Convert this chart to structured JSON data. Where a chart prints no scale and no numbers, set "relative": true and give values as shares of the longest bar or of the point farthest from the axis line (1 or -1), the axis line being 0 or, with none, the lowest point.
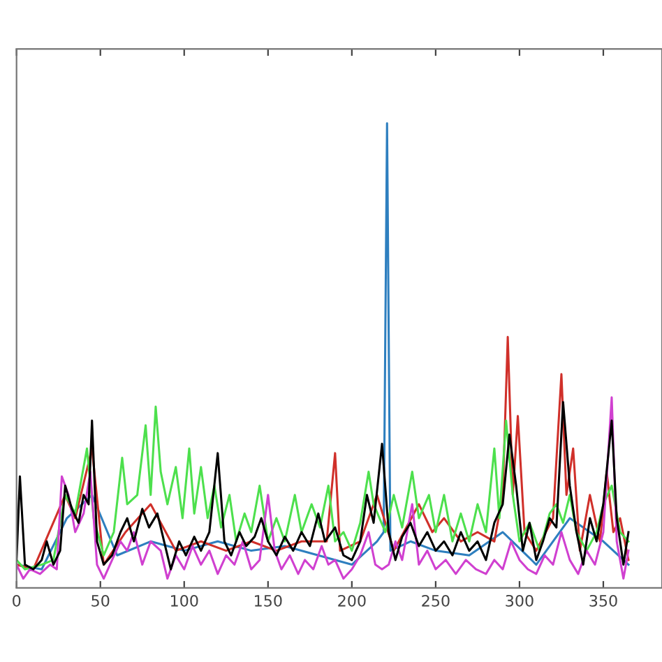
{
  "chart_data": {
    "type": "line",
    "relative": true,
    "xlim": [
      0,
      385
    ],
    "xticks": [
      0,
      50,
      100,
      150,
      200,
      250,
      300,
      350
    ],
    "grid": false,
    "legend": false,
    "marker": "none",
    "line_style": "solid",
    "series": [
      {
        "color": "#2e7fbf",
        "x": [
          0,
          15,
          30,
          45,
          60,
          80,
          100,
          120,
          140,
          160,
          180,
          200,
          215,
          219,
          221,
          223,
          235,
          250,
          270,
          290,
          310,
          330,
          350,
          365
        ],
        "values": [
          0.05,
          0.04,
          0.15,
          0.2,
          0.07,
          0.1,
          0.08,
          0.1,
          0.08,
          0.09,
          0.07,
          0.05,
          0.1,
          0.12,
          1.0,
          0.08,
          0.1,
          0.08,
          0.07,
          0.12,
          0.05,
          0.15,
          0.1,
          0.05
        ]
      },
      {
        "color": "#d0302a",
        "x": [
          0,
          10,
          29,
          35,
          45,
          52,
          65,
          80,
          95,
          110,
          125,
          140,
          155,
          170,
          185,
          190,
          193,
          205,
          215,
          225,
          240,
          248,
          255,
          265,
          275,
          285,
          290,
          293,
          296,
          299,
          303,
          310,
          320,
          325,
          328,
          332,
          336,
          342,
          348,
          352,
          356,
          360,
          365
        ],
        "values": [
          0.05,
          0.04,
          0.2,
          0.15,
          0.3,
          0.05,
          0.12,
          0.18,
          0.08,
          0.1,
          0.08,
          0.1,
          0.08,
          0.1,
          0.1,
          0.29,
          0.08,
          0.1,
          0.2,
          0.08,
          0.18,
          0.12,
          0.15,
          0.1,
          0.12,
          0.1,
          0.2,
          0.54,
          0.2,
          0.37,
          0.12,
          0.08,
          0.15,
          0.46,
          0.2,
          0.3,
          0.08,
          0.2,
          0.1,
          0.25,
          0.12,
          0.15,
          0.06
        ]
      },
      {
        "color": "#4de04d",
        "x": [
          0,
          5,
          15,
          22,
          29,
          35,
          42,
          46,
          52,
          58,
          63,
          66,
          72,
          77,
          80,
          83,
          86,
          90,
          95,
          99,
          103,
          106,
          110,
          114,
          118,
          122,
          127,
          131,
          136,
          140,
          145,
          150,
          155,
          160,
          166,
          170,
          176,
          181,
          186,
          190,
          195,
          200,
          205,
          210,
          213,
          220,
          225,
          230,
          236,
          240,
          246,
          250,
          255,
          260,
          265,
          270,
          275,
          280,
          285,
          288,
          292,
          296,
          300,
          306,
          312,
          318,
          322,
          326,
          330,
          334,
          340,
          346,
          350,
          355,
          360,
          365
        ],
        "values": [
          0.06,
          0.04,
          0.05,
          0.06,
          0.2,
          0.16,
          0.3,
          0.15,
          0.07,
          0.12,
          0.28,
          0.18,
          0.2,
          0.35,
          0.2,
          0.39,
          0.25,
          0.18,
          0.26,
          0.15,
          0.3,
          0.16,
          0.26,
          0.15,
          0.22,
          0.13,
          0.2,
          0.1,
          0.16,
          0.12,
          0.22,
          0.1,
          0.15,
          0.1,
          0.2,
          0.12,
          0.18,
          0.13,
          0.22,
          0.1,
          0.12,
          0.08,
          0.14,
          0.25,
          0.18,
          0.12,
          0.2,
          0.13,
          0.25,
          0.15,
          0.2,
          0.12,
          0.2,
          0.1,
          0.16,
          0.1,
          0.18,
          0.12,
          0.3,
          0.15,
          0.36,
          0.2,
          0.1,
          0.14,
          0.08,
          0.16,
          0.18,
          0.14,
          0.2,
          0.12,
          0.08,
          0.12,
          0.18,
          0.22,
          0.12,
          0.1
        ]
      },
      {
        "color": "#d040d0",
        "x": [
          0,
          4,
          8,
          14,
          20,
          24,
          27,
          31,
          35,
          40,
          44,
          48,
          52,
          57,
          62,
          66,
          70,
          75,
          80,
          86,
          90,
          95,
          100,
          105,
          110,
          115,
          120,
          125,
          130,
          135,
          140,
          145,
          150,
          154,
          158,
          163,
          168,
          172,
          177,
          182,
          186,
          190,
          195,
          200,
          205,
          210,
          214,
          218,
          222,
          226,
          230,
          236,
          240,
          245,
          250,
          256,
          262,
          268,
          274,
          280,
          285,
          290,
          295,
          300,
          305,
          310,
          315,
          320,
          325,
          330,
          335,
          340,
          345,
          350,
          355,
          358,
          362,
          365
        ],
        "values": [
          0.05,
          0.02,
          0.04,
          0.03,
          0.05,
          0.04,
          0.24,
          0.2,
          0.12,
          0.16,
          0.25,
          0.05,
          0.02,
          0.06,
          0.1,
          0.08,
          0.12,
          0.05,
          0.1,
          0.08,
          0.02,
          0.07,
          0.04,
          0.09,
          0.05,
          0.08,
          0.03,
          0.07,
          0.05,
          0.1,
          0.04,
          0.06,
          0.2,
          0.08,
          0.04,
          0.07,
          0.03,
          0.06,
          0.04,
          0.09,
          0.05,
          0.06,
          0.02,
          0.04,
          0.07,
          0.12,
          0.05,
          0.04,
          0.05,
          0.1,
          0.06,
          0.18,
          0.05,
          0.08,
          0.04,
          0.06,
          0.03,
          0.06,
          0.04,
          0.03,
          0.06,
          0.04,
          0.1,
          0.06,
          0.04,
          0.03,
          0.07,
          0.05,
          0.12,
          0.06,
          0.03,
          0.08,
          0.05,
          0.12,
          0.41,
          0.1,
          0.02,
          0.08
        ]
      },
      {
        "color": "#000000",
        "x": [
          0,
          2,
          5,
          10,
          15,
          18,
          22,
          26,
          29,
          33,
          37,
          40,
          43,
          45,
          48,
          52,
          57,
          62,
          66,
          70,
          75,
          79,
          84,
          88,
          92,
          97,
          101,
          106,
          110,
          115,
          120,
          124,
          128,
          133,
          137,
          142,
          146,
          150,
          155,
          160,
          165,
          170,
          175,
          180,
          184,
          190,
          195,
          200,
          205,
          209,
          213,
          218,
          222,
          226,
          230,
          235,
          240,
          245,
          250,
          255,
          260,
          265,
          270,
          275,
          280,
          285,
          290,
          294,
          298,
          302,
          306,
          310,
          314,
          318,
          322,
          326,
          330,
          334,
          338,
          342,
          346,
          350,
          355,
          358,
          362,
          365
        ],
        "values": [
          0.06,
          0.24,
          0.05,
          0.04,
          0.06,
          0.1,
          0.05,
          0.08,
          0.22,
          0.17,
          0.14,
          0.2,
          0.18,
          0.36,
          0.1,
          0.05,
          0.07,
          0.12,
          0.15,
          0.1,
          0.17,
          0.13,
          0.16,
          0.1,
          0.04,
          0.1,
          0.07,
          0.11,
          0.08,
          0.12,
          0.29,
          0.1,
          0.07,
          0.12,
          0.09,
          0.11,
          0.15,
          0.1,
          0.07,
          0.11,
          0.08,
          0.12,
          0.09,
          0.16,
          0.1,
          0.13,
          0.07,
          0.06,
          0.1,
          0.2,
          0.14,
          0.31,
          0.12,
          0.06,
          0.11,
          0.14,
          0.09,
          0.12,
          0.08,
          0.1,
          0.07,
          0.12,
          0.08,
          0.1,
          0.06,
          0.14,
          0.18,
          0.33,
          0.22,
          0.08,
          0.14,
          0.06,
          0.1,
          0.15,
          0.13,
          0.4,
          0.22,
          0.12,
          0.05,
          0.15,
          0.1,
          0.18,
          0.36,
          0.15,
          0.05,
          0.12
        ]
      }
    ]
  }
}
